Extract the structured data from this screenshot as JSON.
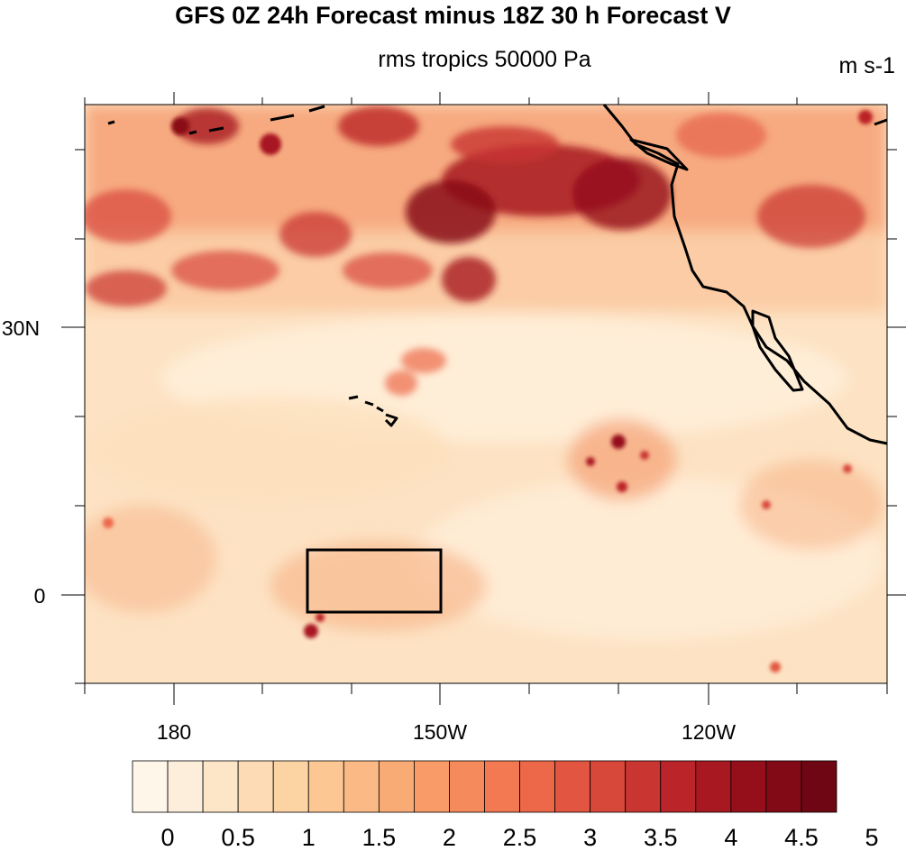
{
  "title": "GFS 0Z 24h Forecast minus 18Z 30 h Forecast V",
  "subtitle": "rms tropics 50000 Pa",
  "units": "m s-1",
  "lat_labels": [
    "30N",
    "0"
  ],
  "lon_labels": [
    "180",
    "150W",
    "120W"
  ],
  "colorbar": {
    "labels": [
      "0",
      "0.5",
      "1",
      "1.5",
      "2",
      "2.5",
      "3",
      "3.5",
      "4",
      "4.5",
      "5"
    ],
    "colors": [
      "#fff6ea",
      "#fdeedb",
      "#fde5c8",
      "#fddbb5",
      "#fcd3a3",
      "#fcc793",
      "#fbba85",
      "#f9ab76",
      "#f89b68",
      "#f58a5c",
      "#f27952",
      "#ec6849",
      "#e25641",
      "#d7473a",
      "#c93531",
      "#bb2428",
      "#a71820",
      "#950f1a",
      "#820a17",
      "#6f0613"
    ]
  },
  "colors": {
    "base": "#fde3c4",
    "warm": "#f7a777",
    "hot": "#c9332c",
    "dark": "#8a0c17",
    "coastline": "#000000"
  }
}
